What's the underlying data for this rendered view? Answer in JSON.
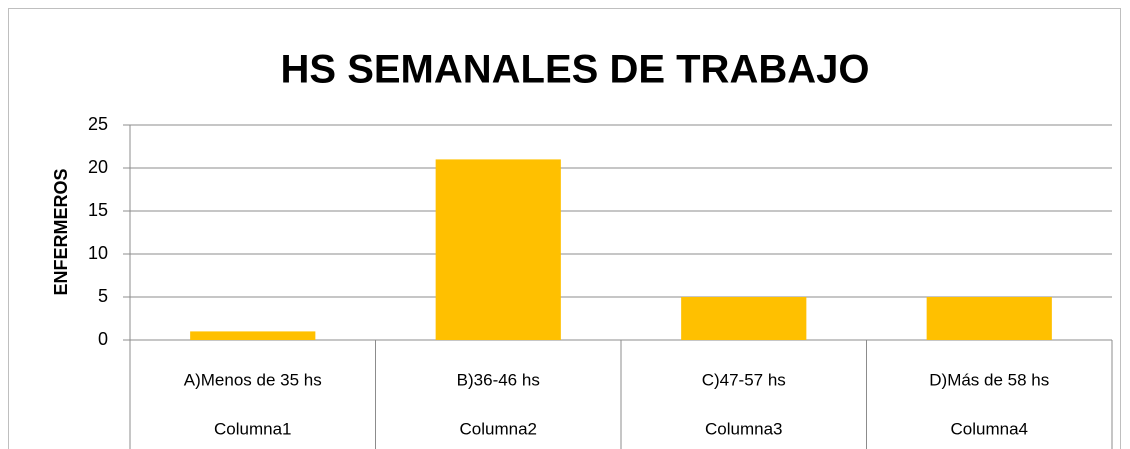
{
  "chart_data": {
    "type": "bar",
    "title": "HS SEMANALES DE TRABAJO",
    "y_label": "ENFERMEROS",
    "categories": [
      "A)Menos de 35 hs",
      "B)36-46 hs",
      "C)47-57 hs",
      "D)Más de 58 hs"
    ],
    "category_groups": [
      "Columna1",
      "Columna2",
      "Columna3",
      "Columna4"
    ],
    "values": [
      1,
      21,
      5,
      5
    ],
    "color": "#ffc000",
    "ylim": [
      0,
      25
    ],
    "yticks": [
      0,
      5,
      10,
      15,
      20,
      25
    ],
    "grid": true
  }
}
